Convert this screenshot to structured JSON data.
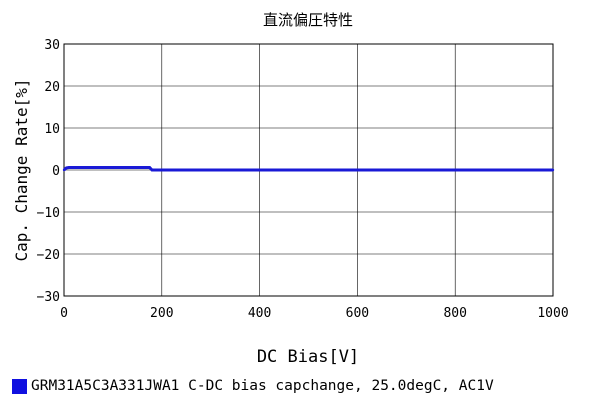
{
  "chart_data": {
    "type": "line",
    "title": "直流偏圧特性",
    "xlabel": "DC Bias[V]",
    "ylabel": "Cap. Change Rate[%]",
    "xlim": [
      0,
      1000
    ],
    "ylim": [
      -30,
      30
    ],
    "x_ticks": [
      0,
      200,
      400,
      600,
      800,
      1000
    ],
    "y_ticks": [
      30,
      20,
      10,
      0,
      -10,
      -20,
      -30
    ],
    "grid": true,
    "colors": {
      "series": "#1a1ad6",
      "legend_swatch": "#1010e0",
      "grid": "#000000"
    },
    "series": [
      {
        "name": "GRM31A5C3A331JWA1 C-DC bias capchange, 25.0degC, AC1V",
        "x": [
          0,
          5,
          10,
          50,
          100,
          150,
          175,
          180,
          200,
          300,
          400,
          500,
          600,
          700,
          800,
          900,
          1000
        ],
        "y": [
          0.0,
          0.5,
          0.6,
          0.6,
          0.6,
          0.6,
          0.6,
          0.0,
          0.0,
          0.0,
          0.0,
          0.0,
          0.0,
          0.0,
          0.0,
          0.0,
          0.0
        ]
      }
    ]
  }
}
